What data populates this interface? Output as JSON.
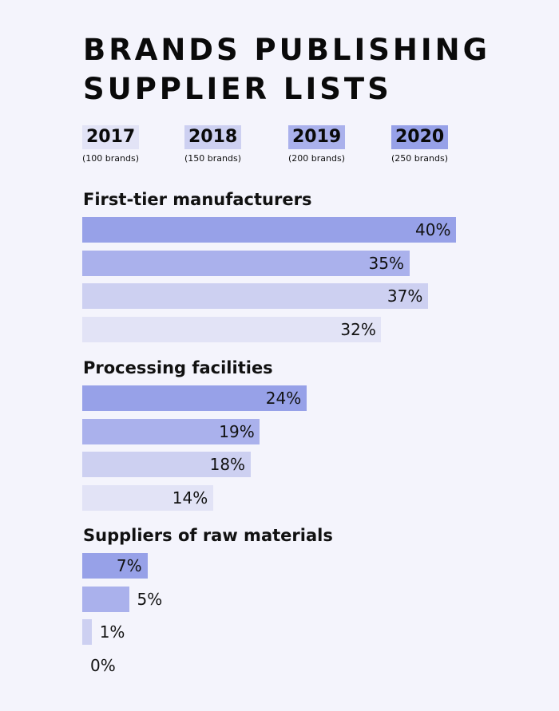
{
  "colors": {
    "2017": "#e2e3f6",
    "2018": "#cdd0f1",
    "2019": "#aab1ec",
    "2020": "#97a1e8",
    "background": "#f4f4fc"
  },
  "chart_data": {
    "type": "bar",
    "orientation": "horizontal",
    "title": "BRANDS PUBLISHING SUPPLIER LISTS",
    "legend_placement": "top",
    "legend": [
      {
        "name": "2017",
        "sub": "(100 brands)"
      },
      {
        "name": "2018",
        "sub": "(150 brands)"
      },
      {
        "name": "2019",
        "sub": "(200 brands)"
      },
      {
        "name": "2020",
        "sub": "(250 brands)"
      }
    ],
    "grid": false,
    "xlim": [
      0,
      40
    ],
    "value_suffix": "%",
    "groups": [
      {
        "name": "First-tier manufacturers",
        "values": [
          {
            "series": "2020",
            "value": 40
          },
          {
            "series": "2019",
            "value": 35
          },
          {
            "series": "2018",
            "value": 37
          },
          {
            "series": "2017",
            "value": 32
          }
        ]
      },
      {
        "name": "Processing facilities",
        "values": [
          {
            "series": "2020",
            "value": 24
          },
          {
            "series": "2019",
            "value": 19
          },
          {
            "series": "2018",
            "value": 18
          },
          {
            "series": "2017",
            "value": 14
          }
        ]
      },
      {
        "name": "Suppliers of raw materials",
        "values": [
          {
            "series": "2020",
            "value": 7
          },
          {
            "series": "2019",
            "value": 5
          },
          {
            "series": "2018",
            "value": 1
          },
          {
            "series": "2017",
            "value": 0
          }
        ]
      }
    ]
  }
}
